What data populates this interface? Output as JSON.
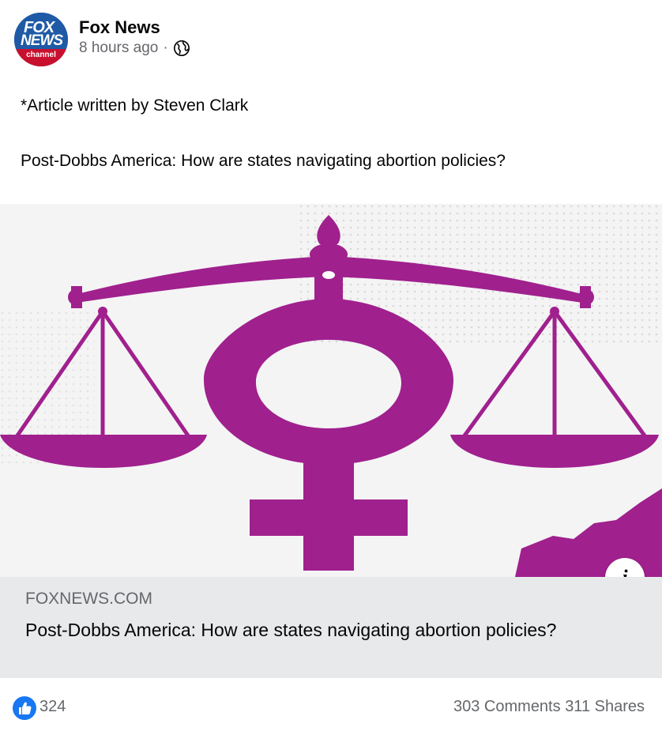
{
  "post": {
    "page_name": "Fox News",
    "time": "8 hours ago",
    "separator": "·",
    "privacy_icon": "globe-icon",
    "avatar": {
      "line1": "FOX",
      "line2": "NEWS",
      "line3": "channel"
    },
    "text_line1": "*Article written by Steven Clark",
    "text_line2": "Post-Dobbs America: How are states navigating abortion policies?"
  },
  "link_preview": {
    "image_icon": "scales-of-justice-female-symbol",
    "info_icon": "info-icon",
    "info_label": "i",
    "domain": "FOXNEWS.COM",
    "title": "Post-Dobbs America: How are states navigating abortion policies?"
  },
  "reactions": {
    "like_icon": "thumbs-up-icon",
    "count": "324",
    "comments": "303 Comments",
    "shares": "311 Shares"
  },
  "colors": {
    "illustration": "#a0208e",
    "like_blue": "#1877f2",
    "secondary_text": "#65676b",
    "link_bg": "#e8e9eb"
  }
}
